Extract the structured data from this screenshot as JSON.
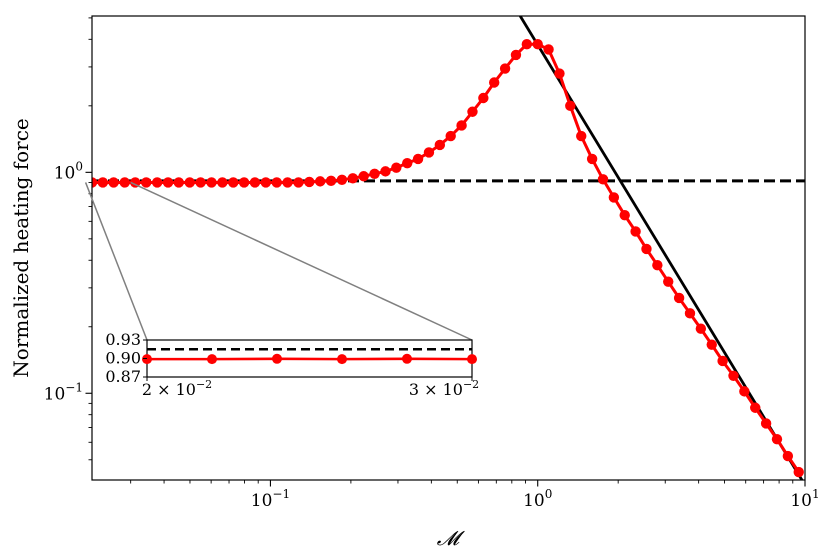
{
  "chart_data": {
    "type": "line",
    "xlabel": "𝓜",
    "ylabel": "Normalized heating force",
    "xscale": "log",
    "yscale": "log",
    "xlim": [
      0.0215,
      10
    ],
    "ylim": [
      0.0405,
      5.1
    ],
    "grid": false,
    "legend": "none",
    "x_ticks": [
      {
        "value": 0.1,
        "base": "10",
        "exp": "−1"
      },
      {
        "value": 1,
        "base": "10",
        "exp": "0"
      },
      {
        "value": 10,
        "base": "10",
        "exp": "1"
      }
    ],
    "y_ticks": [
      {
        "value": 0.1,
        "base": "10",
        "exp": "−1"
      },
      {
        "value": 1,
        "base": "10",
        "exp": "0"
      }
    ],
    "colors": {
      "data": "#ff0000",
      "dashed": "#000000",
      "solid": "#000000",
      "connector": "#808080"
    },
    "series": [
      {
        "style": "red-line-markers",
        "x": [
          0.0215,
          0.0236,
          0.0259,
          0.0285,
          0.0312,
          0.0343,
          0.0377,
          0.0414,
          0.0454,
          0.0499,
          0.0548,
          0.0602,
          0.0661,
          0.0726,
          0.0797,
          0.0875,
          0.0961,
          0.1056,
          0.1159,
          0.1273,
          0.1398,
          0.1535,
          0.1686,
          0.1852,
          0.2034,
          0.2233,
          0.2453,
          0.2694,
          0.2958,
          0.3249,
          0.3568,
          0.3918,
          0.4303,
          0.4726,
          0.519,
          0.57,
          0.626,
          0.6874,
          0.755,
          0.8291,
          0.9105,
          1.0,
          1.098,
          1.206,
          1.324,
          1.455,
          1.598,
          1.755,
          1.927,
          2.116,
          2.324,
          2.552,
          2.803,
          3.078,
          3.381,
          3.713,
          4.077,
          4.478,
          4.918,
          5.401,
          5.931,
          6.514,
          7.153,
          7.856,
          8.627,
          9.474
        ],
        "y": [
          0.9,
          0.9,
          0.9,
          0.9,
          0.9,
          0.9,
          0.9,
          0.9,
          0.9,
          0.9,
          0.9,
          0.9,
          0.9,
          0.9,
          0.9,
          0.9,
          0.9,
          0.9,
          0.9,
          0.9,
          0.905,
          0.91,
          0.915,
          0.925,
          0.94,
          0.96,
          0.985,
          1.01,
          1.05,
          1.1,
          1.15,
          1.23,
          1.33,
          1.46,
          1.63,
          1.88,
          2.17,
          2.55,
          2.95,
          3.4,
          3.8,
          3.8,
          3.6,
          2.8,
          2.0,
          1.46,
          1.15,
          0.93,
          0.77,
          0.64,
          0.54,
          0.45,
          0.38,
          0.32,
          0.27,
          0.23,
          0.196,
          0.166,
          0.14,
          0.12,
          0.102,
          0.086,
          0.073,
          0.062,
          0.052,
          0.044
        ]
      },
      {
        "style": "black-dashed",
        "x": [
          0.0215,
          10
        ],
        "y": [
          0.915,
          0.915
        ]
      },
      {
        "style": "black-solid",
        "x": [
          0.86,
          9.8
        ],
        "y": [
          5.1,
          0.04
        ]
      }
    ],
    "inset": {
      "xlim": [
        0.02,
        0.03
      ],
      "ylim": [
        0.87,
        0.93
      ],
      "x_ticks": [
        {
          "value": 0.02,
          "coef": "2",
          "base": "10",
          "exp": "−2"
        },
        {
          "value": 0.03,
          "coef": "3",
          "base": "10",
          "exp": "−2"
        }
      ],
      "y_ticks": [
        {
          "value": 0.93,
          "label": "0.93"
        },
        {
          "value": 0.9,
          "label": "0.90"
        },
        {
          "value": 0.87,
          "label": "0.87"
        }
      ],
      "data_x": [
        0.02,
        0.022,
        0.024,
        0.026,
        0.028,
        0.03
      ],
      "data_y": [
        0.899,
        0.899,
        0.8995,
        0.899,
        0.8995,
        0.899
      ],
      "dashed_y": 0.915
    }
  }
}
